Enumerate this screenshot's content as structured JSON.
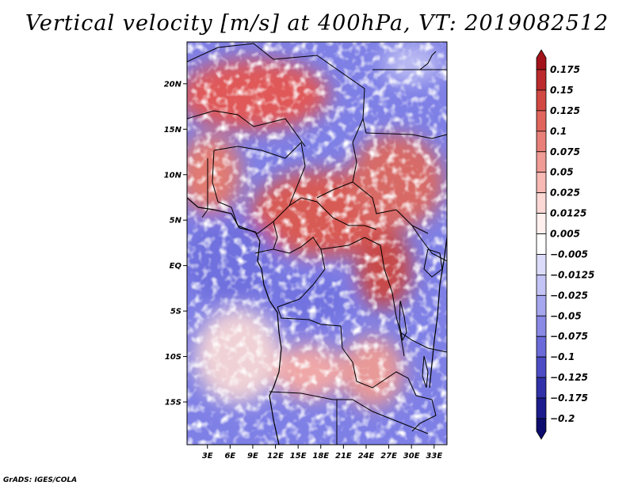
{
  "title": "Vertical velocity [m/s] at 400hPa, VT: 2019082512",
  "footer": "GrADS: IGES/COLA",
  "chart_data": {
    "type": "heatmap",
    "title": "Vertical velocity [m/s] at 400hPa, VT: 2019082512",
    "variable": "Vertical velocity",
    "units": "m/s",
    "level": "400hPa",
    "valid_time": "2019082512",
    "xaxis": {
      "ticks": [
        "3E",
        "6E",
        "9E",
        "12E",
        "15E",
        "18E",
        "21E",
        "24E",
        "27E",
        "30E",
        "33E"
      ],
      "range": [
        0.3,
        34.7
      ]
    },
    "yaxis": {
      "ticks": [
        "20N",
        "15N",
        "10N",
        "5N",
        "EQ",
        "5S",
        "10S",
        "15S"
      ],
      "range": [
        -19.7,
        24.6
      ]
    },
    "colorbar": {
      "labels": [
        "0.175",
        "0.15",
        "0.125",
        "0.1",
        "0.075",
        "0.05",
        "0.025",
        "0.0125",
        "0.005",
        "-0.005",
        "-0.0125",
        "-0.025",
        "-0.05",
        "-0.075",
        "-0.1",
        "-0.125",
        "-0.175",
        "-0.2"
      ],
      "colors": [
        "#a3131a",
        "#bb2a2c",
        "#d14843",
        "#e0655d",
        "#e88079",
        "#f09b95",
        "#f7b9b4",
        "#fbd8d4",
        "#fff0ee",
        "#ffffff",
        "#dcdcfa",
        "#c3c3f5",
        "#a6a6ef",
        "#8989e6",
        "#6a6ad8",
        "#4c4cc5",
        "#3030a8",
        "#1c1c8c",
        "#0c0c6e"
      ]
    }
  }
}
